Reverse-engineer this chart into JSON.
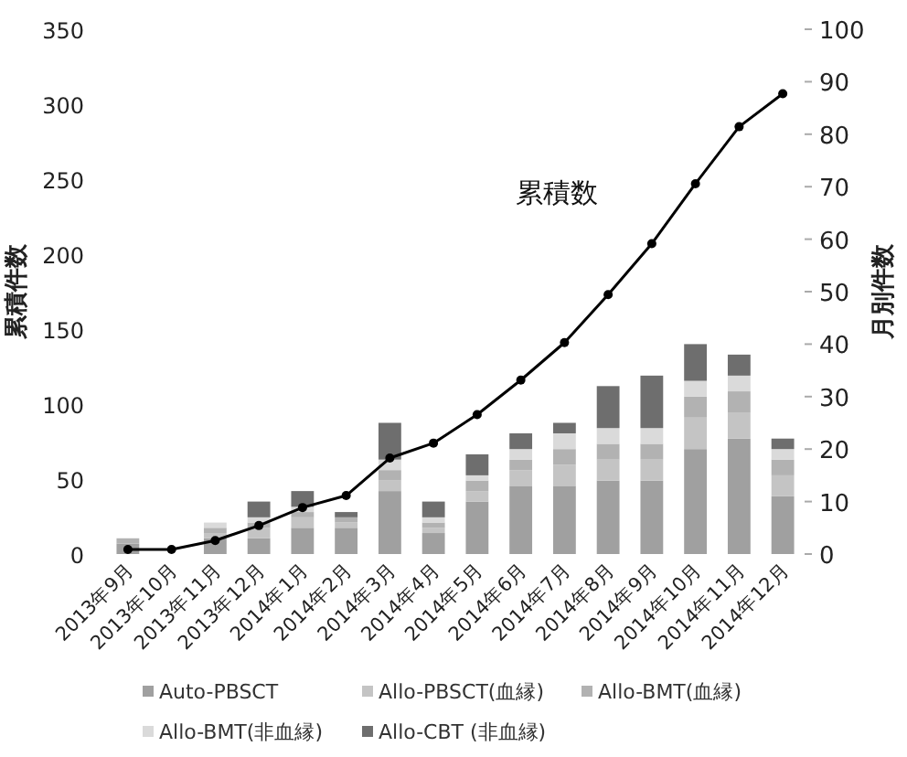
{
  "chart_data": {
    "type": "bar",
    "stacked": true,
    "ylabel": "累積件数",
    "y2label": "月別件数",
    "categories": [
      "2013年9月",
      "2013年10月",
      "2013年11月",
      "2013年12月",
      "2014年1月",
      "2014年2月",
      "2014年3月",
      "2014年4月",
      "2014年5月",
      "2014年6月",
      "2014年7月",
      "2014年8月",
      "2014年9月",
      "2014年10月",
      "2014年11月",
      "2014年12月"
    ],
    "series": [
      {
        "name": "Auto-PBSCT",
        "color": "#a0a0a0",
        "axis": "y2",
        "values": [
          2,
          0,
          3,
          3,
          5,
          5,
          12,
          4,
          10,
          13,
          13,
          14,
          14,
          20,
          22,
          11
        ]
      },
      {
        "name": "Allo-PBSCT(血縁)",
        "color": "#c4c4c4",
        "axis": "y2",
        "values": [
          0,
          0,
          1,
          2,
          2,
          1,
          2,
          1,
          2,
          3,
          4,
          4,
          4,
          6,
          5,
          4
        ]
      },
      {
        "name": "Allo-BMT(血縁)",
        "color": "#b2b2b2",
        "axis": "y2",
        "values": [
          1,
          0,
          1,
          1,
          1,
          1,
          2,
          1,
          2,
          2,
          3,
          3,
          3,
          4,
          4,
          3
        ]
      },
      {
        "name": "Allo-BMT(非血縁)",
        "color": "#dadada",
        "axis": "y2",
        "values": [
          0,
          0,
          1,
          1,
          1,
          0,
          2,
          1,
          1,
          2,
          3,
          3,
          3,
          3,
          3,
          2
        ]
      },
      {
        "name": "Allo-CBT (非血縁)",
        "color": "#6e6e6e",
        "axis": "y2",
        "values": [
          0,
          0,
          0,
          3,
          3,
          1,
          7,
          3,
          4,
          3,
          2,
          8,
          10,
          7,
          4,
          2
        ]
      },
      {
        "type": "line",
        "color": "#000000",
        "axis": "y",
        "values": [
          3,
          3,
          9,
          19,
          31,
          39,
          64,
          74,
          93,
          116,
          141,
          173,
          207,
          247,
          285,
          307
        ]
      }
    ],
    "ylim": [
      0,
      350
    ],
    "yticks": [
      0,
      50,
      100,
      150,
      200,
      250,
      300,
      350
    ],
    "y2lim": [
      0,
      100
    ],
    "y2ticks": [
      0,
      10,
      20,
      30,
      40,
      50,
      60,
      70,
      80,
      90,
      100
    ],
    "annotations": [
      "累積数"
    ],
    "marker": "circle",
    "legend": "bottom",
    "grid": false
  }
}
